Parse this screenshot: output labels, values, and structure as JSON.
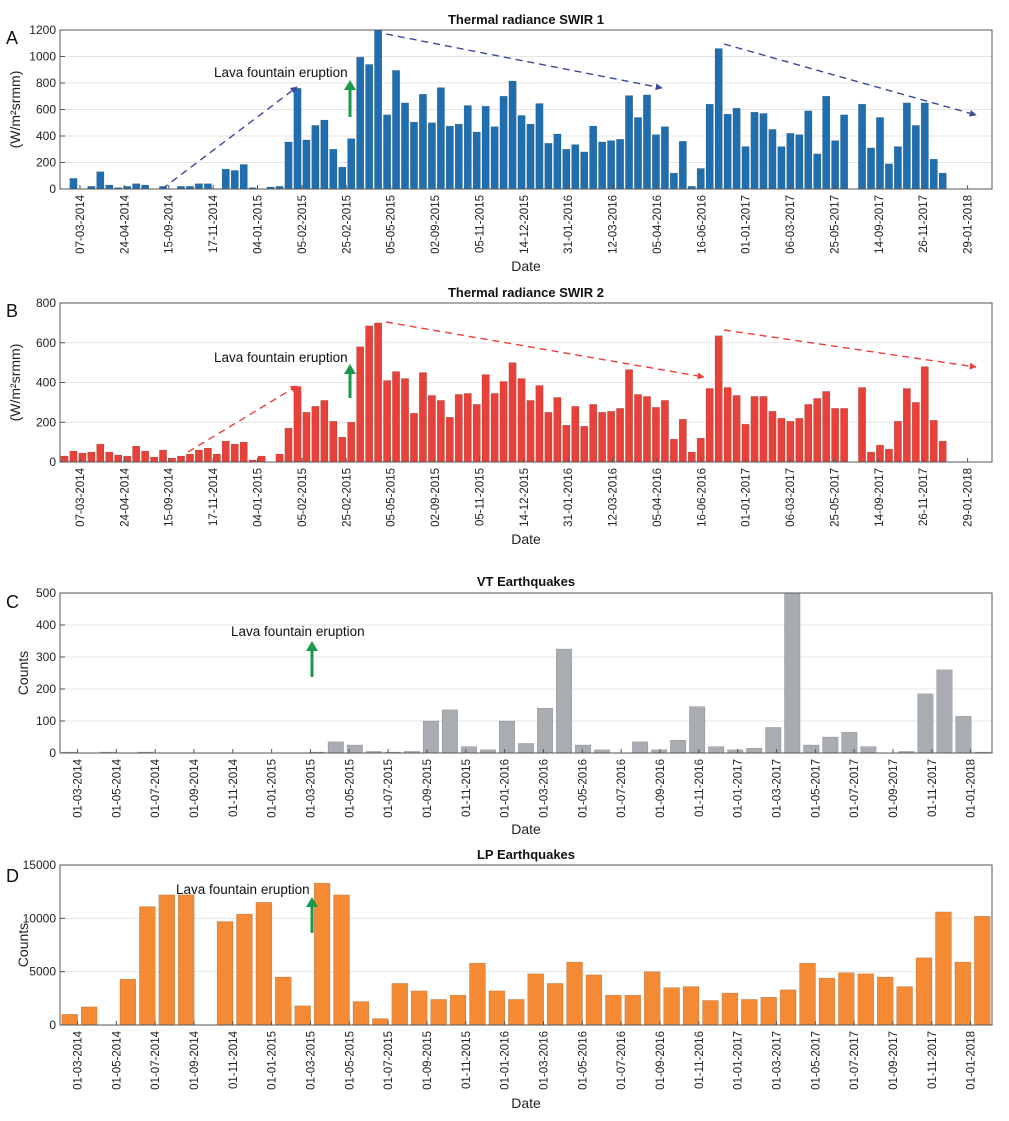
{
  "colors": {
    "swir1": "#1f6fb0",
    "swir2": "#e8413a",
    "vt": "#a9adb1",
    "lp": "#f58a35",
    "trend_blue": "#3b4a9a",
    "trend_red": "#e8413a",
    "arrow_green": "#1a9a4a"
  },
  "chart_data": [
    {
      "panel_letter": "A",
      "type": "bar",
      "title": "Thermal radiance SWIR 1",
      "xlabel": "Date",
      "ylabel": "(W/m²srmm)",
      "ylim": [
        0,
        1200
      ],
      "yticks": [
        0,
        200,
        400,
        600,
        800,
        1000,
        1200
      ],
      "tick_labels": [
        "07-03-2014",
        "24-04-2014",
        "15-09-2014",
        "17-11-2014",
        "04-01-2015",
        "05-02-2015",
        "25-02-2015",
        "05-05-2015",
        "02-09-2015",
        "05-11-2015",
        "14-12-2015",
        "31-01-2016",
        "12-03-2016",
        "05-04-2016",
        "16-06-2016",
        "01-01-2017",
        "06-03-2017",
        "25-05-2017",
        "14-09-2017",
        "26-11-2017",
        "29-01-2018"
      ],
      "values": [
        0,
        80,
        0,
        20,
        130,
        30,
        10,
        20,
        40,
        30,
        0,
        20,
        0,
        20,
        20,
        40,
        40,
        0,
        150,
        140,
        185,
        10,
        0,
        15,
        20,
        355,
        760,
        370,
        480,
        520,
        300,
        165,
        380,
        995,
        940,
        1200,
        560,
        895,
        650,
        505,
        715,
        500,
        765,
        475,
        490,
        630,
        430,
        625,
        470,
        700,
        815,
        555,
        490,
        645,
        345,
        415,
        300,
        335,
        280,
        475,
        355,
        365,
        375,
        705,
        540,
        710,
        410,
        470,
        120,
        360,
        20,
        155,
        640,
        1060,
        565,
        610,
        320,
        580,
        570,
        450,
        320,
        420,
        410,
        590,
        265,
        700,
        365,
        560,
        0,
        640,
        310,
        540,
        190,
        320,
        650,
        480,
        650,
        225,
        120,
        0,
        0,
        0,
        0,
        0
      ],
      "annotations": [
        "Lava fountain eruption"
      ],
      "series_color_key": "swir1",
      "trend_color_key": "trend_blue"
    },
    {
      "panel_letter": "B",
      "type": "bar",
      "title": "Thermal radiance SWIR 2",
      "xlabel": "Date",
      "ylabel": "(W/m²srmm)",
      "ylim": [
        0,
        800
      ],
      "yticks": [
        0,
        200,
        400,
        600,
        800
      ],
      "tick_labels": [
        "07-03-2014",
        "24-04-2014",
        "15-09-2014",
        "17-11-2014",
        "04-01-2015",
        "05-02-2015",
        "25-02-2015",
        "05-05-2015",
        "02-09-2015",
        "05-11-2015",
        "14-12-2015",
        "31-01-2016",
        "12-03-2016",
        "05-04-2016",
        "16-06-2016",
        "01-01-2017",
        "06-03-2017",
        "25-05-2017",
        "14-09-2017",
        "26-11-2017",
        "29-01-2018"
      ],
      "values": [
        30,
        55,
        45,
        50,
        90,
        50,
        35,
        30,
        80,
        55,
        25,
        60,
        20,
        30,
        40,
        60,
        70,
        40,
        105,
        90,
        100,
        10,
        30,
        0,
        40,
        170,
        380,
        250,
        280,
        310,
        205,
        125,
        200,
        580,
        685,
        700,
        410,
        455,
        420,
        245,
        450,
        335,
        310,
        225,
        340,
        345,
        290,
        440,
        345,
        405,
        500,
        420,
        310,
        385,
        250,
        325,
        185,
        280,
        180,
        290,
        250,
        255,
        270,
        465,
        340,
        330,
        275,
        310,
        115,
        215,
        50,
        120,
        370,
        635,
        375,
        335,
        190,
        330,
        330,
        255,
        220,
        205,
        220,
        290,
        320,
        355,
        270,
        270,
        0,
        375,
        50,
        85,
        65,
        205,
        370,
        300,
        480,
        210,
        105,
        0,
        0,
        0,
        0,
        0
      ],
      "annotations": [
        "Lava fountain eruption"
      ],
      "series_color_key": "swir2",
      "trend_color_key": "trend_red"
    },
    {
      "panel_letter": "C",
      "type": "bar",
      "title": "VT Earthquakes",
      "xlabel": "Date",
      "ylabel": "Counts",
      "ylim": [
        0,
        500
      ],
      "yticks": [
        0,
        100,
        200,
        300,
        400,
        500
      ],
      "tick_labels": [
        "01-03-2014",
        "01-05-2014",
        "01-07-2014",
        "01-09-2014",
        "01-11-2014",
        "01-01-2015",
        "01-03-2015",
        "01-05-2015",
        "01-07-2015",
        "01-09-2015",
        "01-11-2015",
        "01-01-2016",
        "01-03-2016",
        "01-05-2016",
        "01-07-2016",
        "01-09-2016",
        "01-11-2016",
        "01-01-2017",
        "01-03-2017",
        "01-05-2017",
        "01-07-2017",
        "01-09-2017",
        "01-11-2017",
        "01-01-2018"
      ],
      "values": [
        3,
        0,
        3,
        0,
        3,
        0,
        0,
        0,
        0,
        0,
        0,
        0,
        0,
        3,
        35,
        25,
        5,
        3,
        5,
        100,
        135,
        20,
        10,
        100,
        30,
        140,
        325,
        25,
        10,
        0,
        35,
        10,
        40,
        145,
        20,
        10,
        15,
        80,
        500,
        25,
        50,
        65,
        20,
        0,
        5,
        185,
        260,
        115,
        3
      ],
      "annotations": [
        "Lava fountain eruption"
      ],
      "series_color_key": "vt"
    },
    {
      "panel_letter": "D",
      "type": "bar",
      "title": "LP Earthquakes",
      "xlabel": "Date",
      "ylabel": "Counts",
      "ylim": [
        0,
        15000
      ],
      "yticks": [
        0,
        5000,
        10000,
        15000
      ],
      "tick_labels": [
        "01-03-2014",
        "01-05-2014",
        "01-07-2014",
        "01-09-2014",
        "01-11-2014",
        "01-01-2015",
        "01-03-2015",
        "01-05-2015",
        "01-07-2015",
        "01-09-2015",
        "01-11-2015",
        "01-01-2016",
        "01-03-2016",
        "01-05-2016",
        "01-07-2016",
        "01-09-2016",
        "01-11-2016",
        "01-01-2017",
        "01-03-2017",
        "01-05-2017",
        "01-07-2017",
        "01-09-2017",
        "01-11-2017",
        "01-01-2018"
      ],
      "values": [
        1000,
        1700,
        0,
        4300,
        11100,
        12200,
        12200,
        0,
        9700,
        10400,
        11500,
        4500,
        1800,
        13300,
        12200,
        2200,
        600,
        3900,
        3200,
        2400,
        2800,
        5800,
        3200,
        2400,
        4800,
        3900,
        5900,
        4700,
        2800,
        2800,
        5000,
        3500,
        3600,
        2300,
        3000,
        2400,
        2600,
        3300,
        5800,
        4400,
        4900,
        4800,
        4500,
        3600,
        6300,
        10600,
        5900,
        10200
      ],
      "annotations": [
        "Lava fountain eruption"
      ],
      "series_color_key": "lp"
    }
  ]
}
